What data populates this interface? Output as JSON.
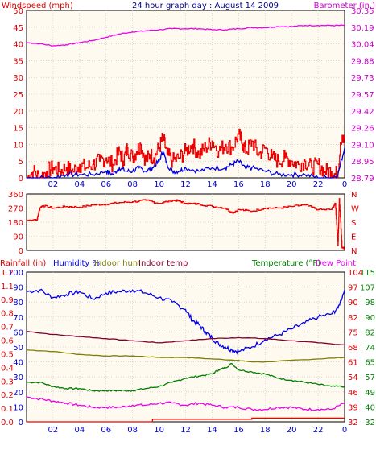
{
  "colors": {
    "windspeed": "#ee0000",
    "gust": "#0000dd",
    "barometer": "#ee00ee",
    "direction": "#ee0000",
    "rain": "#ee0000",
    "humidity": "#0000ee",
    "indoor_hum": "#808000",
    "indoor_temp": "#800030",
    "temperature": "#008000",
    "dew_point": "#ee00ee",
    "axis_red": "#dd0000",
    "axis_blue": "#0000cc",
    "axis_magenta": "#cc00cc",
    "axis_green": "#008000",
    "title_blue": "#000080",
    "background": "#fffaf0",
    "grid": "#c0c0c0"
  },
  "chart_data": [
    {
      "type": "line",
      "title": "24 hour graph day : August 14 2009",
      "left_label": "Windspeed (mph)",
      "right_label": "Barometer (in.)",
      "x_tick_labels": [
        "02",
        "04",
        "06",
        "08",
        "10",
        "12",
        "14",
        "16",
        "18",
        "20",
        "22",
        "0"
      ],
      "x_range": [
        0,
        24
      ],
      "left_ticks": [
        "50",
        "45",
        "40",
        "35",
        "30",
        "25",
        "20",
        "15",
        "10",
        "5",
        "0"
      ],
      "ylim_left": [
        0,
        50
      ],
      "right_ticks": [
        "30.35",
        "30.19",
        "30.04",
        "29.88",
        "29.73",
        "29.57",
        "29.42",
        "29.26",
        "29.10",
        "28.95",
        "28.79"
      ],
      "ylim_right": [
        28.79,
        30.35
      ],
      "grid": true,
      "series": [
        {
          "key": "windspeed",
          "axis": "left",
          "x": [
            0,
            0.5,
            1,
            1.5,
            2,
            2.5,
            3,
            3.5,
            4,
            4.5,
            5,
            5.5,
            6,
            6.5,
            7,
            7.3,
            7.6,
            8,
            8.3,
            8.6,
            9,
            9.3,
            9.6,
            10,
            10.3,
            10.6,
            11,
            11.5,
            12,
            12.5,
            13,
            13.5,
            14,
            14.5,
            15,
            15.5,
            16,
            16.3,
            16.6,
            17,
            17.5,
            18,
            18.5,
            19,
            19.5,
            20,
            20.5,
            21,
            21.5,
            22,
            22.5,
            23,
            23.3,
            23.5,
            23.7,
            24
          ],
          "values": [
            0,
            2,
            0,
            2,
            3,
            2,
            3,
            2,
            4,
            3,
            4,
            5,
            6,
            4,
            8,
            5,
            9,
            6,
            8,
            10,
            5,
            7,
            6,
            9,
            12,
            7,
            5,
            6,
            8,
            10,
            7,
            9,
            11,
            8,
            10,
            9,
            13,
            10,
            8,
            11,
            7,
            9,
            6,
            5,
            6,
            5,
            4,
            5,
            3,
            4,
            2,
            2,
            1,
            2,
            10,
            12
          ]
        },
        {
          "key": "gust",
          "axis": "left",
          "x": [
            0,
            1,
            2,
            3,
            4,
            5,
            6,
            6.5,
            7,
            7.5,
            8,
            8.5,
            9,
            9.5,
            10,
            10.3,
            10.6,
            11,
            11.5,
            12,
            13,
            14,
            15,
            15.5,
            16,
            16.5,
            17,
            18,
            19,
            20,
            21,
            22,
            23,
            23.5,
            24
          ],
          "values": [
            0,
            0,
            0,
            1,
            1,
            1,
            2,
            1,
            3,
            2,
            2,
            3,
            2,
            3,
            5,
            8,
            4,
            2,
            2,
            3,
            2,
            3,
            3,
            4,
            5,
            3,
            3,
            2,
            1,
            1,
            1,
            0,
            0,
            1,
            9
          ]
        },
        {
          "key": "barometer",
          "axis": "right",
          "x": [
            0,
            1,
            2,
            3,
            4,
            5,
            6,
            7,
            8,
            9,
            10,
            11,
            12,
            13,
            14,
            15,
            16,
            17,
            18,
            19,
            20,
            21,
            22,
            23,
            24
          ],
          "values": [
            30.05,
            30.04,
            30.02,
            30.03,
            30.05,
            30.07,
            30.1,
            30.13,
            30.15,
            30.16,
            30.17,
            30.18,
            30.18,
            30.18,
            30.17,
            30.17,
            30.18,
            30.19,
            30.19,
            30.2,
            30.2,
            30.21,
            30.21,
            30.21,
            30.21
          ]
        }
      ]
    },
    {
      "type": "line",
      "x_tick_labels": [],
      "x_range": [
        0,
        24
      ],
      "left_ticks": [
        "360",
        "270",
        "180",
        "90",
        "0"
      ],
      "ylim_left": [
        0,
        360
      ],
      "right_ticks": [
        "N",
        "W",
        "S",
        "E",
        "N"
      ],
      "grid": true,
      "series": [
        {
          "key": "direction",
          "axis": "left",
          "x": [
            0,
            0.8,
            1,
            1.2,
            2,
            3,
            4,
            5,
            6,
            7,
            8,
            9,
            10,
            11,
            11.5,
            12,
            13,
            14,
            15,
            15.5,
            16,
            17,
            18,
            19,
            20,
            21,
            22,
            23,
            23.3,
            23.5,
            23.6,
            23.8,
            24
          ],
          "values": [
            190,
            200,
            270,
            285,
            270,
            280,
            275,
            290,
            295,
            305,
            310,
            320,
            300,
            320,
            315,
            300,
            295,
            280,
            270,
            240,
            260,
            250,
            270,
            270,
            280,
            290,
            260,
            260,
            300,
            30,
            330,
            20,
            10
          ]
        }
      ]
    },
    {
      "type": "line",
      "left_label": "Rainfall (in)",
      "legend": [
        "Humidity %",
        "Indoor hum",
        "Indoor temp",
        "Temperature (°F)",
        "Dew Point"
      ],
      "x_tick_labels": [
        "02",
        "04",
        "06",
        "08",
        "10",
        "12",
        "14",
        "16",
        "18",
        "20",
        "22",
        "0"
      ],
      "x_range": [
        0,
        24
      ],
      "rain_ticks": [
        "1.2",
        "1.1",
        "0.9",
        "0.8",
        "0.7",
        "0.6",
        "0.5",
        "0.4",
        "0.3",
        "0.2",
        "0.1",
        "0.0"
      ],
      "ylim_rain": [
        0,
        1.2
      ],
      "humidity_ticks": [
        "100",
        "90",
        "80",
        "70",
        "60",
        "50",
        "40",
        "30",
        "20",
        "10",
        "0"
      ],
      "ylim_humidity": [
        0,
        100
      ],
      "temp_ticks_a": [
        "104",
        "97",
        "90",
        "82",
        "75",
        "68",
        "61",
        "54",
        "46",
        "39",
        "32"
      ],
      "temp_ticks_b": [
        "115",
        "107",
        "98",
        "90",
        "82",
        "74",
        "65",
        "57",
        "49",
        "40",
        "32"
      ],
      "ylim_temp": [
        32,
        104
      ],
      "grid": true,
      "series": [
        {
          "key": "rain",
          "axis": "rain",
          "x": [
            0,
            9,
            9.5,
            16,
            17,
            24
          ],
          "values": [
            0.0,
            0.0,
            0.02,
            0.02,
            0.03,
            0.03
          ]
        },
        {
          "key": "humidity",
          "axis": "humidity",
          "x": [
            0,
            1,
            2,
            3,
            4,
            5,
            6,
            7,
            8,
            9,
            10,
            11,
            12,
            12.5,
            13,
            13.5,
            14,
            14.5,
            15,
            15.5,
            16,
            17,
            18,
            19,
            20,
            21,
            22,
            23,
            23.5,
            24
          ],
          "values": [
            87,
            88,
            83,
            85,
            87,
            82,
            86,
            87,
            88,
            86,
            83,
            80,
            75,
            68,
            65,
            60,
            56,
            52,
            50,
            48,
            47,
            50,
            55,
            58,
            62,
            66,
            70,
            72,
            76,
            88
          ]
        },
        {
          "key": "indoor_hum",
          "axis": "humidity",
          "x": [
            0,
            2,
            4,
            6,
            8,
            10,
            12,
            14,
            16,
            17,
            18,
            20,
            22,
            24
          ],
          "values": [
            48,
            47,
            45,
            44,
            44,
            43,
            43,
            42,
            41,
            40,
            40,
            41,
            42,
            43
          ]
        },
        {
          "key": "indoor_temp",
          "axis": "temp",
          "x": [
            0,
            2,
            4,
            6,
            8,
            10,
            12,
            14,
            16,
            18,
            20,
            22,
            24
          ],
          "values": [
            75.5,
            74,
            73,
            72,
            71,
            70,
            71,
            72,
            72.5,
            72,
            71,
            70,
            69
          ]
        },
        {
          "key": "temperature",
          "axis": "temp",
          "x": [
            0,
            1,
            2,
            3,
            4,
            5,
            6,
            7,
            8,
            9,
            10,
            11,
            12,
            13,
            14,
            14.5,
            15,
            15.5,
            16,
            17,
            18,
            19,
            20,
            21,
            22,
            23,
            24
          ],
          "values": [
            51,
            51,
            49,
            48,
            48,
            47,
            47,
            47,
            47,
            48,
            49,
            51,
            53,
            54,
            55,
            57,
            58,
            60,
            57,
            56,
            55,
            53,
            52,
            51,
            50,
            49,
            49
          ]
        },
        {
          "key": "dew_point",
          "axis": "temp",
          "x": [
            0,
            1,
            2,
            3,
            4,
            5,
            6,
            7,
            8,
            9,
            10,
            11,
            12,
            13,
            14,
            15,
            16,
            17,
            18,
            19,
            20,
            21,
            22,
            23,
            24
          ],
          "values": [
            44,
            43,
            42,
            41,
            40,
            39,
            39,
            39,
            40,
            40,
            41,
            41,
            40,
            41,
            40,
            39,
            39,
            38,
            38,
            39,
            39,
            38,
            38,
            38,
            41
          ]
        }
      ]
    }
  ]
}
